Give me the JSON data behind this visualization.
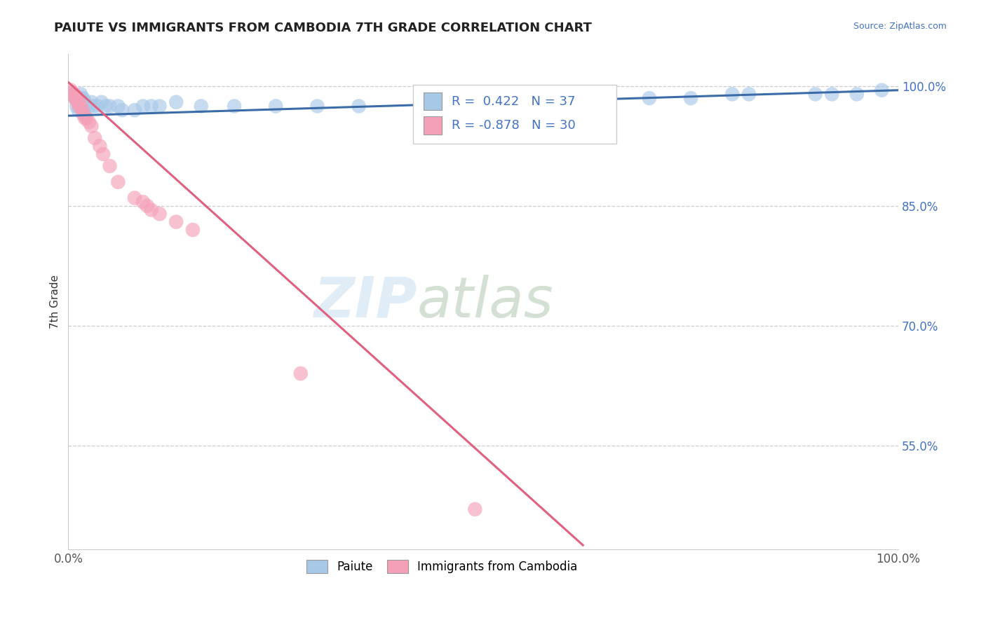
{
  "title": "PAIUTE VS IMMIGRANTS FROM CAMBODIA 7TH GRADE CORRELATION CHART",
  "source": "Source: ZipAtlas.com",
  "ylabel": "7th Grade",
  "xlim": [
    0.0,
    1.0
  ],
  "ylim": [
    0.42,
    1.04
  ],
  "yticks": [
    0.55,
    0.7,
    0.85,
    1.0
  ],
  "ytick_labels": [
    "55.0%",
    "70.0%",
    "85.0%",
    "100.0%"
  ],
  "xticks": [
    0.0,
    1.0
  ],
  "xtick_labels": [
    "0.0%",
    "100.0%"
  ],
  "blue_color": "#a8c8e8",
  "pink_color": "#f4a0b8",
  "blue_line_color": "#3b6ca8",
  "pink_line_color": "#e06080",
  "paiute_x": [
    0.005,
    0.008,
    0.01,
    0.012,
    0.012,
    0.015,
    0.016,
    0.018,
    0.02,
    0.022,
    0.025,
    0.028,
    0.03,
    0.035,
    0.04,
    0.045,
    0.05,
    0.06,
    0.065,
    0.08,
    0.09,
    0.1,
    0.11,
    0.13,
    0.16,
    0.2,
    0.25,
    0.3,
    0.35,
    0.7,
    0.75,
    0.8,
    0.82,
    0.9,
    0.92,
    0.95,
    0.98
  ],
  "paiute_y": [
    0.99,
    0.985,
    0.975,
    0.98,
    0.97,
    0.99,
    0.985,
    0.985,
    0.98,
    0.975,
    0.975,
    0.98,
    0.975,
    0.975,
    0.98,
    0.975,
    0.975,
    0.975,
    0.97,
    0.97,
    0.975,
    0.975,
    0.975,
    0.98,
    0.975,
    0.975,
    0.975,
    0.975,
    0.975,
    0.985,
    0.985,
    0.99,
    0.99,
    0.99,
    0.99,
    0.99,
    0.995
  ],
  "cambodia_x": [
    0.003,
    0.005,
    0.007,
    0.008,
    0.009,
    0.01,
    0.011,
    0.012,
    0.013,
    0.015,
    0.017,
    0.018,
    0.02,
    0.022,
    0.025,
    0.028,
    0.032,
    0.038,
    0.042,
    0.05,
    0.06,
    0.08,
    0.09,
    0.095,
    0.1,
    0.11,
    0.13,
    0.15,
    0.28,
    0.49
  ],
  "cambodia_y": [
    0.995,
    0.992,
    0.99,
    0.985,
    0.988,
    0.985,
    0.98,
    0.98,
    0.975,
    0.975,
    0.97,
    0.965,
    0.96,
    0.96,
    0.955,
    0.95,
    0.935,
    0.925,
    0.915,
    0.9,
    0.88,
    0.86,
    0.855,
    0.85,
    0.845,
    0.84,
    0.83,
    0.82,
    0.64,
    0.47
  ],
  "blue_trend_x": [
    0.0,
    1.0
  ],
  "blue_trend_y": [
    0.963,
    0.995
  ],
  "pink_trend_x": [
    0.0,
    0.62
  ],
  "pink_trend_y": [
    1.005,
    0.425
  ]
}
